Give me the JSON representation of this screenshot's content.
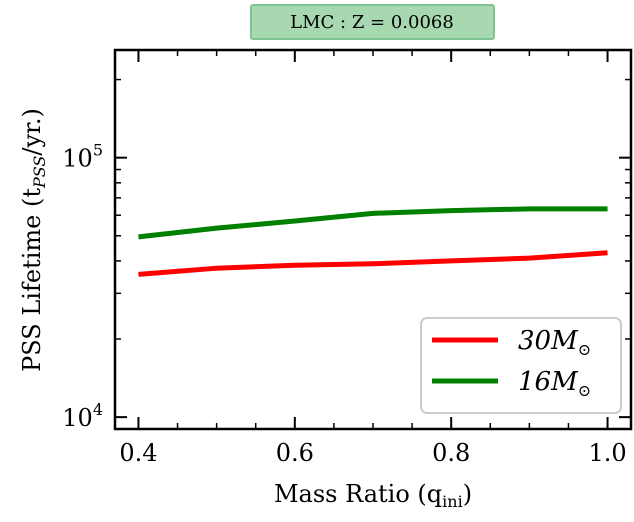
{
  "chart_data": {
    "type": "line",
    "title": "LMC : Z = 0.0068",
    "xlabel": "Mass Ratio (q",
    "xlabel_sub": "ini",
    "xlabel_close": ")",
    "ylabel": "PSS Lifetime (t",
    "ylabel_sub": "PSS",
    "ylabel_close": "/yr.)",
    "xlim": [
      0.37,
      1.03
    ],
    "ylim": [
      9000,
      260000
    ],
    "yscale": "log",
    "grid": false,
    "legend_position": "lower-right",
    "x_ticks": [
      0.4,
      0.6,
      0.8,
      1.0
    ],
    "x_tick_labels": [
      "0.4",
      "0.6",
      "0.8",
      "1.0"
    ],
    "y_ticks": [
      10000,
      100000
    ],
    "y_tick_labels": [
      {
        "base": "10",
        "exp": "4"
      },
      {
        "base": "10",
        "exp": "5"
      }
    ],
    "series": [
      {
        "name": "30M",
        "name_sub": "⊙",
        "color": "#ff0000",
        "x": [
          0.4,
          0.5,
          0.6,
          0.7,
          0.8,
          0.9,
          1.0
        ],
        "y": [
          35500,
          37500,
          38500,
          39000,
          40000,
          41000,
          43000
        ]
      },
      {
        "name": "16M",
        "name_sub": "⊙",
        "color": "#008000",
        "x": [
          0.4,
          0.5,
          0.6,
          0.7,
          0.8,
          0.9,
          1.0
        ],
        "y": [
          49500,
          53500,
          57000,
          61000,
          62500,
          63500,
          63500
        ]
      }
    ],
    "badge_color": "#a8d8b0",
    "badge_border": "#7cc490"
  }
}
